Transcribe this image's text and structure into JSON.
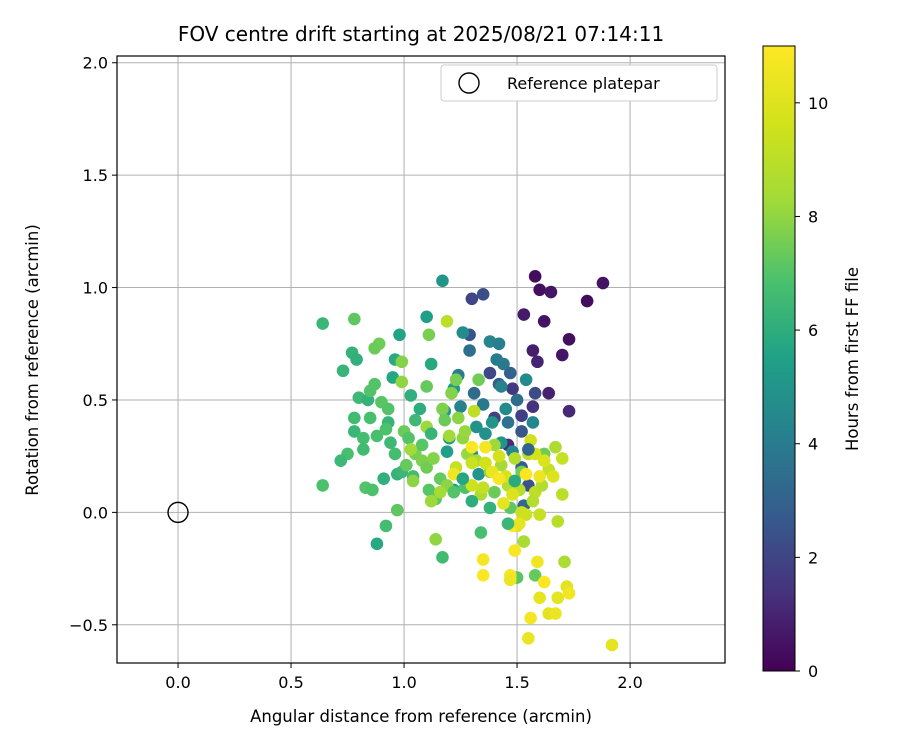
{
  "chart_data": {
    "type": "scatter",
    "title": "FOV centre drift starting at 2025/08/21 07:14:11",
    "xlabel": "Angular distance from reference (arcmin)",
    "ylabel": "Rotation from reference (arcmin)",
    "xlim": [
      -0.27,
      2.42
    ],
    "ylim": [
      -0.67,
      2.03
    ],
    "xticks": [
      0.0,
      0.5,
      1.0,
      1.5,
      2.0
    ],
    "xtick_labels": [
      "0.0",
      "0.5",
      "1.0",
      "1.5",
      "2.0"
    ],
    "yticks": [
      -0.5,
      0.0,
      0.5,
      1.0,
      1.5,
      2.0
    ],
    "ytick_labels": [
      "−0.5",
      "0.0",
      "0.5",
      "1.0",
      "1.5",
      "2.0"
    ],
    "grid": true,
    "legend": {
      "position": "top-right",
      "entries": [
        {
          "label": "Reference platepar",
          "marker": "open-circle"
        }
      ]
    },
    "reference_point": {
      "x": 0.0,
      "y": 0.0
    },
    "colorbar": {
      "label": "Hours from first FF file",
      "range": [
        0,
        11
      ],
      "ticks": [
        0,
        2,
        4,
        6,
        8,
        10
      ],
      "tick_labels": [
        "0",
        "2",
        "4",
        "6",
        "8",
        "10"
      ],
      "colormap": "viridis"
    },
    "points": [
      [
        1.58,
        1.05,
        0.3
      ],
      [
        1.88,
        1.02,
        0.5
      ],
      [
        1.6,
        0.99,
        0.4
      ],
      [
        1.65,
        0.98,
        0.6
      ],
      [
        1.81,
        0.94,
        0.3
      ],
      [
        1.53,
        0.88,
        0.7
      ],
      [
        1.62,
        0.85,
        0.5
      ],
      [
        1.73,
        0.77,
        0.4
      ],
      [
        1.57,
        0.72,
        0.8
      ],
      [
        1.7,
        0.7,
        0.6
      ],
      [
        1.59,
        0.67,
        1.0
      ],
      [
        1.64,
        0.53,
        0.9
      ],
      [
        1.73,
        0.45,
        1.1
      ],
      [
        1.57,
        0.47,
        1.4
      ],
      [
        1.48,
        0.55,
        1.6
      ],
      [
        1.52,
        0.43,
        1.8
      ],
      [
        1.58,
        0.53,
        2.2
      ],
      [
        1.46,
        0.3,
        1.2
      ],
      [
        1.4,
        0.42,
        1.9
      ],
      [
        1.3,
        0.95,
        2.0
      ],
      [
        1.35,
        0.97,
        2.3
      ],
      [
        1.29,
        0.79,
        2.5
      ],
      [
        1.38,
        0.62,
        2.1
      ],
      [
        1.42,
        0.57,
        2.7
      ],
      [
        1.47,
        0.62,
        3.0
      ],
      [
        1.52,
        0.2,
        2.8
      ],
      [
        1.55,
        0.12,
        2.4
      ],
      [
        1.53,
        0.03,
        3.2
      ],
      [
        1.29,
        0.72,
        3.5
      ],
      [
        1.31,
        0.53,
        3.3
      ],
      [
        1.44,
        0.66,
        3.8
      ],
      [
        1.46,
        0.4,
        3.6
      ],
      [
        1.24,
        0.61,
        4.0
      ],
      [
        1.35,
        0.48,
        3.9
      ],
      [
        1.25,
        0.47,
        4.2
      ],
      [
        1.38,
        0.76,
        4.4
      ],
      [
        1.42,
        0.75,
        4.1
      ],
      [
        1.43,
        0.56,
        4.3
      ],
      [
        1.48,
        0.27,
        4.5
      ],
      [
        1.26,
        0.8,
        4.7
      ],
      [
        1.54,
        0.59,
        4.6
      ],
      [
        1.57,
        0.4,
        4.4
      ],
      [
        1.36,
        0.35,
        4.8
      ],
      [
        1.43,
        0.31,
        5.0
      ],
      [
        1.32,
        0.38,
        4.9
      ],
      [
        1.22,
        0.55,
        5.2
      ],
      [
        1.18,
        0.45,
        5.1
      ],
      [
        1.2,
        0.33,
        5.3
      ],
      [
        1.17,
        1.03,
        5.0
      ],
      [
        1.1,
        0.87,
        5.4
      ],
      [
        0.98,
        0.79,
        5.6
      ],
      [
        1.12,
        0.66,
        5.8
      ],
      [
        0.96,
        0.68,
        5.9
      ],
      [
        0.95,
        0.6,
        5.7
      ],
      [
        1.07,
        0.46,
        6.0
      ],
      [
        1.03,
        0.52,
        6.1
      ],
      [
        1.3,
        0.26,
        4.7
      ],
      [
        1.33,
        0.17,
        5.0
      ],
      [
        1.22,
        0.1,
        5.5
      ],
      [
        0.77,
        0.71,
        6.2
      ],
      [
        0.79,
        0.68,
        6.1
      ],
      [
        0.73,
        0.63,
        6.3
      ],
      [
        0.64,
        0.84,
        6.4
      ],
      [
        0.8,
        0.51,
        6.5
      ],
      [
        0.78,
        0.42,
        6.6
      ],
      [
        0.78,
        0.36,
        6.4
      ],
      [
        0.82,
        0.33,
        6.7
      ],
      [
        0.75,
        0.26,
        6.8
      ],
      [
        0.72,
        0.23,
        6.5
      ],
      [
        0.64,
        0.12,
        6.9
      ],
      [
        0.82,
        0.28,
        6.6
      ],
      [
        0.84,
        0.5,
        6.2
      ],
      [
        0.85,
        0.54,
        7.0
      ],
      [
        0.9,
        0.49,
        7.1
      ],
      [
        0.93,
        0.4,
        6.3
      ],
      [
        0.94,
        0.31,
        6.5
      ],
      [
        0.96,
        0.26,
        6.7
      ],
      [
        0.88,
        0.34,
        6.8
      ],
      [
        0.91,
        0.15,
        6.1
      ],
      [
        0.97,
        0.17,
        6.2
      ],
      [
        0.99,
        0.18,
        6.4
      ],
      [
        0.88,
        -0.14,
        5.8
      ],
      [
        0.92,
        -0.06,
        6.7
      ],
      [
        0.97,
        0.01,
        7.2
      ],
      [
        0.83,
        0.11,
        7.0
      ],
      [
        0.86,
        0.1,
        6.9
      ],
      [
        1.01,
        0.21,
        7.3
      ],
      [
        1.04,
        0.16,
        6.6
      ],
      [
        1.0,
        0.36,
        7.4
      ],
      [
        1.02,
        0.33,
        7.0
      ],
      [
        1.05,
        0.26,
        7.6
      ],
      [
        1.08,
        0.23,
        7.7
      ],
      [
        1.1,
        0.2,
        7.5
      ],
      [
        1.13,
        0.24,
        7.8
      ],
      [
        1.11,
        0.1,
        7.1
      ],
      [
        1.16,
        0.15,
        7.3
      ],
      [
        1.17,
        -0.2,
        6.6
      ],
      [
        1.14,
        0.06,
        7.2
      ],
      [
        1.19,
        0.12,
        7.9
      ],
      [
        1.22,
        0.09,
        7.0
      ],
      [
        1.27,
        0.11,
        6.9
      ],
      [
        1.34,
        -0.09,
        6.8
      ],
      [
        1.4,
        0.09,
        7.4
      ],
      [
        1.47,
        0.02,
        7.2
      ],
      [
        1.5,
        -0.29,
        7.1
      ],
      [
        1.58,
        -0.28,
        7.3
      ],
      [
        1.62,
        0.26,
        7.5
      ],
      [
        1.52,
        0.18,
        7.6
      ],
      [
        0.78,
        0.86,
        7.2
      ],
      [
        0.89,
        0.75,
        7.5
      ],
      [
        1.11,
        0.79,
        7.6
      ],
      [
        0.87,
        0.73,
        7.4
      ],
      [
        0.99,
        0.67,
        7.8
      ],
      [
        1.1,
        0.56,
        7.3
      ],
      [
        1.17,
        0.46,
        7.7
      ],
      [
        1.21,
        0.53,
        7.8
      ],
      [
        1.33,
        0.59,
        7.5
      ],
      [
        1.23,
        0.59,
        7.6
      ],
      [
        1.24,
        0.42,
        7.9
      ],
      [
        1.26,
        0.33,
        8.0
      ],
      [
        1.28,
        0.26,
        8.1
      ],
      [
        1.18,
        0.41,
        7.4
      ],
      [
        1.1,
        0.38,
        8.2
      ],
      [
        1.08,
        0.3,
        7.1
      ],
      [
        0.93,
        0.46,
        7.0
      ],
      [
        0.99,
        0.58,
        8.0
      ],
      [
        1.03,
        0.28,
        8.3
      ],
      [
        1.04,
        0.14,
        7.9
      ],
      [
        1.12,
        0.05,
        8.2
      ],
      [
        1.14,
        -0.12,
        8.0
      ],
      [
        1.16,
        0.09,
        8.4
      ],
      [
        1.2,
        0.34,
        8.3
      ],
      [
        1.27,
        0.36,
        8.1
      ],
      [
        1.32,
        0.23,
        8.5
      ],
      [
        1.34,
        0.08,
        8.6
      ],
      [
        1.38,
        0.18,
        8.0
      ],
      [
        1.4,
        0.3,
        8.2
      ],
      [
        1.43,
        0.21,
        8.4
      ],
      [
        1.46,
        0.12,
        8.7
      ],
      [
        1.49,
        0.24,
        8.8
      ],
      [
        1.51,
        0.1,
        8.9
      ],
      [
        1.53,
        -0.13,
        8.5
      ],
      [
        1.55,
        0.26,
        9.0
      ],
      [
        1.58,
        0.09,
        9.1
      ],
      [
        1.61,
        0.12,
        8.7
      ],
      [
        1.64,
        0.19,
        9.2
      ],
      [
        1.67,
        0.29,
        8.6
      ],
      [
        1.7,
        0.08,
        9.0
      ],
      [
        1.68,
        -0.04,
        8.9
      ],
      [
        1.71,
        -0.22,
        8.6
      ],
      [
        1.57,
        0.05,
        8.8
      ],
      [
        1.6,
        -0.01,
        9.3
      ],
      [
        1.19,
        0.85,
        9.0
      ],
      [
        1.31,
        0.45,
        9.1
      ],
      [
        1.3,
        0.22,
        9.4
      ],
      [
        1.35,
        0.11,
        9.2
      ],
      [
        1.23,
        0.2,
        9.3
      ],
      [
        1.3,
        0.12,
        9.5
      ],
      [
        1.36,
        0.22,
        9.6
      ],
      [
        1.42,
        0.25,
        9.7
      ],
      [
        1.45,
        0.16,
        9.8
      ],
      [
        1.48,
        0.08,
        9.9
      ],
      [
        1.5,
        -0.06,
        10.0
      ],
      [
        1.52,
        0.0,
        9.4
      ],
      [
        1.54,
        -0.01,
        9.5
      ],
      [
        1.56,
        0.32,
        9.6
      ],
      [
        1.58,
        0.26,
        9.7
      ],
      [
        1.62,
        0.23,
        9.9
      ],
      [
        1.66,
        0.16,
        10.0
      ],
      [
        1.7,
        0.24,
        9.3
      ],
      [
        1.72,
        -0.33,
        10.1
      ],
      [
        1.68,
        -0.38,
        10.2
      ],
      [
        1.6,
        -0.38,
        10.3
      ],
      [
        1.64,
        -0.45,
        10.1
      ],
      [
        1.67,
        -0.45,
        10.5
      ],
      [
        1.73,
        -0.36,
        10.6
      ],
      [
        1.56,
        -0.47,
        10.7
      ],
      [
        1.55,
        -0.56,
        10.4
      ],
      [
        1.92,
        -0.59,
        10.2
      ],
      [
        1.62,
        -0.31,
        10.9
      ],
      [
        1.59,
        -0.22,
        10.6
      ],
      [
        1.47,
        -0.28,
        10.8
      ],
      [
        1.47,
        -0.3,
        10.5
      ],
      [
        1.35,
        -0.28,
        10.9
      ],
      [
        1.35,
        -0.21,
        10.7
      ],
      [
        1.49,
        -0.17,
        10.8
      ],
      [
        1.48,
        -0.06,
        11.0
      ],
      [
        1.22,
        0.17,
        10.6
      ],
      [
        1.3,
        0.29,
        10.9
      ],
      [
        1.36,
        0.29,
        10.7
      ],
      [
        1.39,
        0.18,
        10.4
      ],
      [
        1.42,
        0.15,
        10.8
      ],
      [
        1.54,
        0.17,
        10.9
      ],
      [
        1.6,
        0.16,
        10.5
      ],
      [
        1.51,
        -0.05,
        10.3
      ],
      [
        1.44,
        0.04,
        10.2
      ],
      [
        0.87,
        0.57,
        7.0
      ],
      [
        0.85,
        0.42,
        6.8
      ],
      [
        0.92,
        0.37,
        6.9
      ],
      [
        1.05,
        0.41,
        6.5
      ],
      [
        1.12,
        0.35,
        6.3
      ],
      [
        1.19,
        0.27,
        5.4
      ],
      [
        1.26,
        0.15,
        5.7
      ],
      [
        1.3,
        0.05,
        6.0
      ],
      [
        1.38,
        0.02,
        6.2
      ],
      [
        1.46,
        -0.05,
        6.4
      ],
      [
        1.49,
        0.14,
        5.9
      ],
      [
        1.39,
        0.4,
        5.0
      ],
      [
        1.45,
        0.46,
        4.6
      ],
      [
        1.41,
        0.68,
        4.0
      ],
      [
        1.5,
        0.5,
        3.4
      ],
      [
        1.52,
        0.36,
        2.6
      ],
      [
        1.55,
        0.28,
        3.1
      ]
    ]
  }
}
